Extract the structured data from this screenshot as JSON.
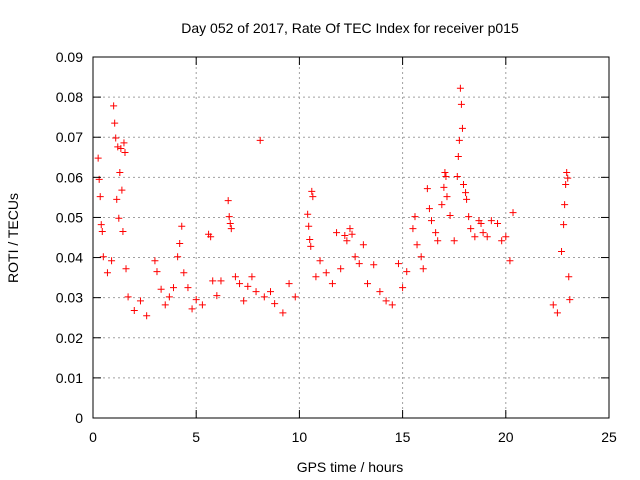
{
  "chart_data": {
    "type": "scatter",
    "title": "Day 052 of 2017, Rate Of TEC Index for receiver p015",
    "xlabel": "GPS time / hours",
    "ylabel": "ROTI / TECUs",
    "xlim": [
      0,
      25
    ],
    "ylim": [
      0,
      0.09
    ],
    "x_ticks": [
      0,
      5,
      10,
      15,
      20,
      25
    ],
    "y_ticks": [
      0,
      0.01,
      0.02,
      0.03,
      0.04,
      0.05,
      0.06,
      0.07,
      0.08,
      0.09
    ],
    "x_tick_labels": [
      "0",
      "5",
      "10",
      "15",
      "20",
      "25"
    ],
    "y_tick_labels": [
      "0",
      "0.01",
      "0.02",
      "0.03",
      "0.04",
      "0.05",
      "0.06",
      "0.07",
      "0.08",
      "0.09"
    ],
    "grid": true,
    "marker": "+",
    "marker_color": "#ff0000",
    "points": [
      [
        0.25,
        0.0648
      ],
      [
        0.3,
        0.0595
      ],
      [
        0.35,
        0.0552
      ],
      [
        0.4,
        0.0482
      ],
      [
        0.45,
        0.0465
      ],
      [
        1.0,
        0.0778
      ],
      [
        1.05,
        0.0735
      ],
      [
        1.1,
        0.0698
      ],
      [
        1.2,
        0.0676
      ],
      [
        1.35,
        0.0672
      ],
      [
        1.5,
        0.0686
      ],
      [
        1.55,
        0.0662
      ],
      [
        1.3,
        0.0612
      ],
      [
        1.4,
        0.0568
      ],
      [
        1.15,
        0.0545
      ],
      [
        1.25,
        0.0498
      ],
      [
        1.45,
        0.0465
      ],
      [
        0.5,
        0.0402
      ],
      [
        0.7,
        0.0362
      ],
      [
        0.9,
        0.0392
      ],
      [
        1.6,
        0.0372
      ],
      [
        1.7,
        0.0302
      ],
      [
        2.0,
        0.0268
      ],
      [
        2.3,
        0.0292
      ],
      [
        2.6,
        0.0255
      ],
      [
        3.0,
        0.0392
      ],
      [
        3.1,
        0.0365
      ],
      [
        3.3,
        0.0321
      ],
      [
        3.5,
        0.0282
      ],
      [
        3.7,
        0.0302
      ],
      [
        3.9,
        0.0325
      ],
      [
        4.1,
        0.0402
      ],
      [
        4.2,
        0.0435
      ],
      [
        4.3,
        0.0478
      ],
      [
        4.4,
        0.0362
      ],
      [
        4.6,
        0.0325
      ],
      [
        4.8,
        0.0272
      ],
      [
        5.0,
        0.0295
      ],
      [
        5.3,
        0.0282
      ],
      [
        5.6,
        0.0458
      ],
      [
        5.7,
        0.0452
      ],
      [
        5.8,
        0.0342
      ],
      [
        6.0,
        0.0305
      ],
      [
        6.2,
        0.0342
      ],
      [
        6.55,
        0.0542
      ],
      [
        6.6,
        0.0502
      ],
      [
        6.65,
        0.0485
      ],
      [
        6.7,
        0.0472
      ],
      [
        6.9,
        0.0352
      ],
      [
        7.1,
        0.0335
      ],
      [
        7.3,
        0.0292
      ],
      [
        7.5,
        0.0328
      ],
      [
        7.7,
        0.0352
      ],
      [
        7.9,
        0.0315
      ],
      [
        8.1,
        0.0692
      ],
      [
        8.3,
        0.0302
      ],
      [
        8.6,
        0.0315
      ],
      [
        8.8,
        0.0285
      ],
      [
        9.2,
        0.0262
      ],
      [
        9.5,
        0.0335
      ],
      [
        9.8,
        0.0302
      ],
      [
        10.4,
        0.0508
      ],
      [
        10.45,
        0.0478
      ],
      [
        10.5,
        0.0445
      ],
      [
        10.55,
        0.0428
      ],
      [
        10.6,
        0.0565
      ],
      [
        10.65,
        0.0552
      ],
      [
        10.8,
        0.0352
      ],
      [
        11.0,
        0.0392
      ],
      [
        11.3,
        0.0362
      ],
      [
        11.6,
        0.0335
      ],
      [
        11.8,
        0.0462
      ],
      [
        12.0,
        0.0372
      ],
      [
        12.2,
        0.0455
      ],
      [
        12.3,
        0.0442
      ],
      [
        12.45,
        0.0472
      ],
      [
        12.55,
        0.0458
      ],
      [
        12.7,
        0.0402
      ],
      [
        12.9,
        0.0385
      ],
      [
        13.1,
        0.0432
      ],
      [
        13.3,
        0.0335
      ],
      [
        13.6,
        0.0382
      ],
      [
        13.9,
        0.0315
      ],
      [
        14.2,
        0.0292
      ],
      [
        14.5,
        0.0282
      ],
      [
        14.8,
        0.0385
      ],
      [
        15.0,
        0.0325
      ],
      [
        15.2,
        0.0365
      ],
      [
        15.5,
        0.0472
      ],
      [
        15.6,
        0.0502
      ],
      [
        15.7,
        0.0432
      ],
      [
        15.9,
        0.0402
      ],
      [
        16.0,
        0.0372
      ],
      [
        16.2,
        0.0572
      ],
      [
        16.3,
        0.0522
      ],
      [
        16.4,
        0.0492
      ],
      [
        16.6,
        0.0462
      ],
      [
        16.7,
        0.0442
      ],
      [
        16.9,
        0.0532
      ],
      [
        17.0,
        0.0575
      ],
      [
        17.05,
        0.0612
      ],
      [
        17.1,
        0.0602
      ],
      [
        17.15,
        0.0552
      ],
      [
        17.3,
        0.0505
      ],
      [
        17.5,
        0.0442
      ],
      [
        17.8,
        0.0822
      ],
      [
        17.85,
        0.0782
      ],
      [
        17.9,
        0.0722
      ],
      [
        17.75,
        0.0692
      ],
      [
        17.7,
        0.0652
      ],
      [
        17.65,
        0.0602
      ],
      [
        17.95,
        0.0582
      ],
      [
        18.05,
        0.0562
      ],
      [
        18.1,
        0.0545
      ],
      [
        18.2,
        0.0502
      ],
      [
        18.3,
        0.0472
      ],
      [
        18.5,
        0.0452
      ],
      [
        18.7,
        0.0492
      ],
      [
        18.8,
        0.0485
      ],
      [
        18.9,
        0.0462
      ],
      [
        19.1,
        0.0452
      ],
      [
        19.3,
        0.0492
      ],
      [
        19.6,
        0.0485
      ],
      [
        19.8,
        0.0442
      ],
      [
        20.0,
        0.0452
      ],
      [
        20.2,
        0.0392
      ],
      [
        20.35,
        0.0512
      ],
      [
        22.3,
        0.0282
      ],
      [
        22.5,
        0.0262
      ],
      [
        22.7,
        0.0415
      ],
      [
        22.8,
        0.0482
      ],
      [
        22.85,
        0.0532
      ],
      [
        22.9,
        0.0582
      ],
      [
        22.95,
        0.0612
      ],
      [
        23.0,
        0.0598
      ],
      [
        23.05,
        0.0352
      ],
      [
        23.1,
        0.0295
      ]
    ]
  }
}
